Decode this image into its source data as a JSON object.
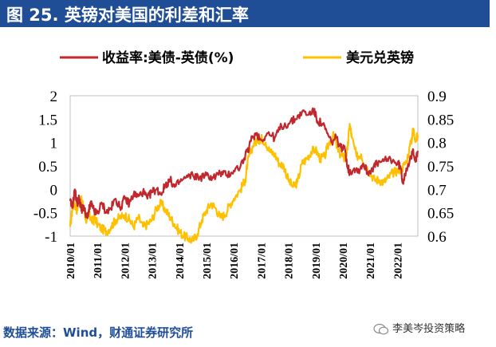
{
  "header": {
    "title": "图 25.  英镑对美国的利差和汇率"
  },
  "footer": {
    "source": "数据来源：Wind，财通证券研究所",
    "watermark": "李美岑投资策略",
    "watermark_icon": "wechat-icon"
  },
  "colors": {
    "title_bg": "#1f4e97",
    "spread": "#c0282d",
    "fx": "#ffc000"
  },
  "chart_data": {
    "type": "line",
    "title": "图 25.  英镑对美国的利差和汇率",
    "xlabel": "",
    "ylabel": "",
    "y_left": {
      "lim": [
        -1,
        2
      ],
      "ticks": [
        "2",
        "1.5",
        "1",
        "0.5",
        "0",
        "-0.5",
        "-1"
      ]
    },
    "y_right": {
      "lim": [
        0.6,
        0.9
      ],
      "ticks": [
        "0.9",
        "0.85",
        "0.8",
        "0.75",
        "0.7",
        "0.65",
        "0.6"
      ]
    },
    "x_range": [
      2010.0,
      2022.75
    ],
    "x_tick_labels": [
      "2010/01",
      "2011/01",
      "2012/01",
      "2013/01",
      "2014/01",
      "2015/01",
      "2016/01",
      "2017/01",
      "2018/01",
      "2019/01",
      "2020/01",
      "2021/01",
      "2022/01"
    ],
    "legend": [
      "收益率:美债-英债(%)",
      "美元兑英镑"
    ],
    "legend_position": "top",
    "grid": false,
    "series": [
      {
        "name": "收益率:美债-英债(%)",
        "axis": "left",
        "color": "#c0282d",
        "x": [
          2010.0,
          2010.08,
          2010.17,
          2010.25,
          2010.33,
          2010.42,
          2010.5,
          2010.58,
          2010.67,
          2010.75,
          2010.83,
          2010.92,
          2011.0,
          2011.17,
          2011.33,
          2011.5,
          2011.67,
          2011.83,
          2012.0,
          2012.17,
          2012.33,
          2012.5,
          2012.67,
          2012.83,
          2013.0,
          2013.17,
          2013.33,
          2013.5,
          2013.67,
          2013.83,
          2014.0,
          2014.25,
          2014.5,
          2014.75,
          2015.0,
          2015.25,
          2015.5,
          2015.75,
          2016.0,
          2016.25,
          2016.5,
          2016.67,
          2016.83,
          2017.0,
          2017.25,
          2017.5,
          2017.75,
          2018.0,
          2018.25,
          2018.5,
          2018.75,
          2018.92,
          2019.08,
          2019.25,
          2019.42,
          2019.58,
          2019.75,
          2019.92,
          2020.08,
          2020.17,
          2020.25,
          2020.42,
          2020.58,
          2020.75,
          2020.92,
          2021.08,
          2021.25,
          2021.5,
          2021.75,
          2022.0,
          2022.1,
          2022.2,
          2022.33,
          2022.5,
          2022.58,
          2022.67,
          2022.75
        ],
        "values": [
          -0.25,
          -0.4,
          0.0,
          -0.3,
          -0.2,
          -0.45,
          -0.35,
          -0.6,
          -0.5,
          -0.3,
          -0.4,
          -0.5,
          -0.5,
          -0.3,
          -0.5,
          -0.4,
          -0.2,
          -0.4,
          -0.2,
          -0.3,
          -0.1,
          -0.15,
          -0.05,
          -0.2,
          -0.05,
          0.0,
          -0.1,
          0.1,
          0.2,
          0.05,
          0.15,
          0.25,
          0.3,
          0.25,
          0.3,
          0.25,
          0.35,
          0.3,
          0.4,
          0.5,
          0.8,
          1.1,
          1.2,
          1.05,
          1.2,
          1.1,
          1.35,
          1.4,
          1.5,
          1.65,
          1.6,
          1.7,
          1.45,
          1.4,
          1.2,
          1.0,
          1.1,
          0.9,
          0.85,
          0.5,
          0.35,
          0.45,
          0.4,
          0.55,
          0.35,
          0.45,
          0.55,
          0.6,
          0.65,
          0.55,
          0.5,
          0.15,
          0.45,
          0.65,
          0.85,
          0.6,
          0.8
        ]
      },
      {
        "name": "美元兑英镑",
        "axis": "right",
        "color": "#ffc000",
        "x": [
          2010.0,
          2010.08,
          2010.17,
          2010.25,
          2010.33,
          2010.42,
          2010.5,
          2010.58,
          2010.67,
          2010.75,
          2010.83,
          2010.92,
          2011.0,
          2011.17,
          2011.33,
          2011.5,
          2011.67,
          2011.83,
          2012.0,
          2012.17,
          2012.33,
          2012.5,
          2012.67,
          2012.83,
          2013.0,
          2013.17,
          2013.33,
          2013.5,
          2013.67,
          2013.83,
          2014.0,
          2014.17,
          2014.33,
          2014.5,
          2014.67,
          2014.83,
          2015.0,
          2015.17,
          2015.33,
          2015.5,
          2015.67,
          2015.83,
          2016.0,
          2016.25,
          2016.42,
          2016.5,
          2016.58,
          2016.75,
          2016.92,
          2017.0,
          2017.17,
          2017.33,
          2017.5,
          2017.67,
          2017.83,
          2018.0,
          2018.17,
          2018.33,
          2018.5,
          2018.67,
          2018.83,
          2019.0,
          2019.17,
          2019.33,
          2019.5,
          2019.67,
          2019.83,
          2020.0,
          2020.08,
          2020.17,
          2020.25,
          2020.33,
          2020.5,
          2020.67,
          2020.83,
          2021.0,
          2021.17,
          2021.33,
          2021.5,
          2021.67,
          2021.83,
          2022.0,
          2022.17,
          2022.33,
          2022.5,
          2022.58,
          2022.67,
          2022.75
        ],
        "values": [
          0.62,
          0.66,
          0.67,
          0.655,
          0.68,
          0.675,
          0.66,
          0.635,
          0.645,
          0.64,
          0.63,
          0.64,
          0.625,
          0.615,
          0.61,
          0.62,
          0.635,
          0.64,
          0.645,
          0.635,
          0.62,
          0.64,
          0.62,
          0.625,
          0.635,
          0.66,
          0.67,
          0.655,
          0.64,
          0.625,
          0.61,
          0.6,
          0.595,
          0.59,
          0.605,
          0.635,
          0.655,
          0.67,
          0.66,
          0.64,
          0.645,
          0.665,
          0.68,
          0.7,
          0.72,
          0.755,
          0.775,
          0.8,
          0.805,
          0.81,
          0.8,
          0.78,
          0.775,
          0.755,
          0.75,
          0.72,
          0.705,
          0.715,
          0.755,
          0.765,
          0.78,
          0.785,
          0.765,
          0.77,
          0.8,
          0.815,
          0.78,
          0.77,
          0.765,
          0.785,
          0.84,
          0.81,
          0.77,
          0.775,
          0.75,
          0.735,
          0.72,
          0.72,
          0.715,
          0.725,
          0.735,
          0.74,
          0.745,
          0.76,
          0.8,
          0.83,
          0.805,
          0.815
        ]
      }
    ]
  }
}
